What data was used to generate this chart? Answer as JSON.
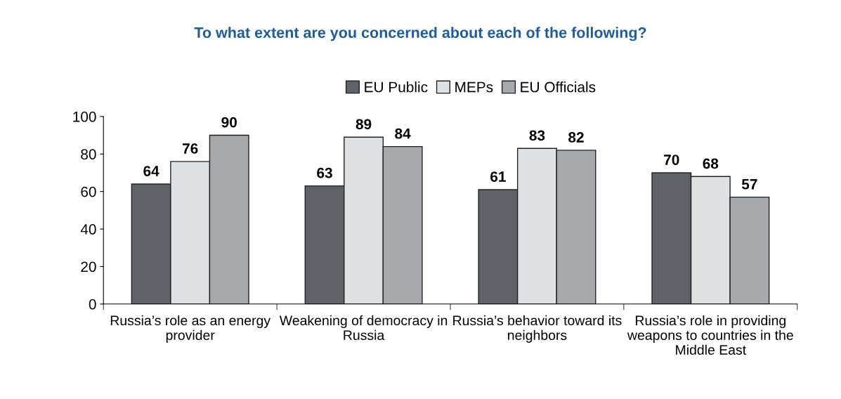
{
  "chart_data": {
    "type": "bar",
    "title": "To what extent are you concerned about each of the following?",
    "categories": [
      "Russia’s role as an energy provider",
      "Weakening of democracy in Russia",
      "Russia’s behavior toward its neighbors",
      "Russia’s role in providing weapons to countries in the Middle East"
    ],
    "series": [
      {
        "name": "EU Public",
        "color": "#5f6266",
        "values": [
          64,
          63,
          61,
          70
        ]
      },
      {
        "name": "MEPs",
        "color": "#e0e1e3",
        "values": [
          76,
          89,
          83,
          68
        ]
      },
      {
        "name": "EU Officials",
        "color": "#a7a9ad",
        "values": [
          90,
          84,
          82,
          57
        ]
      }
    ],
    "ylim": [
      0,
      100
    ],
    "yticks": [
      0,
      20,
      40,
      60,
      80,
      100
    ],
    "grid": false,
    "legend": "top",
    "data_labels": true
  }
}
